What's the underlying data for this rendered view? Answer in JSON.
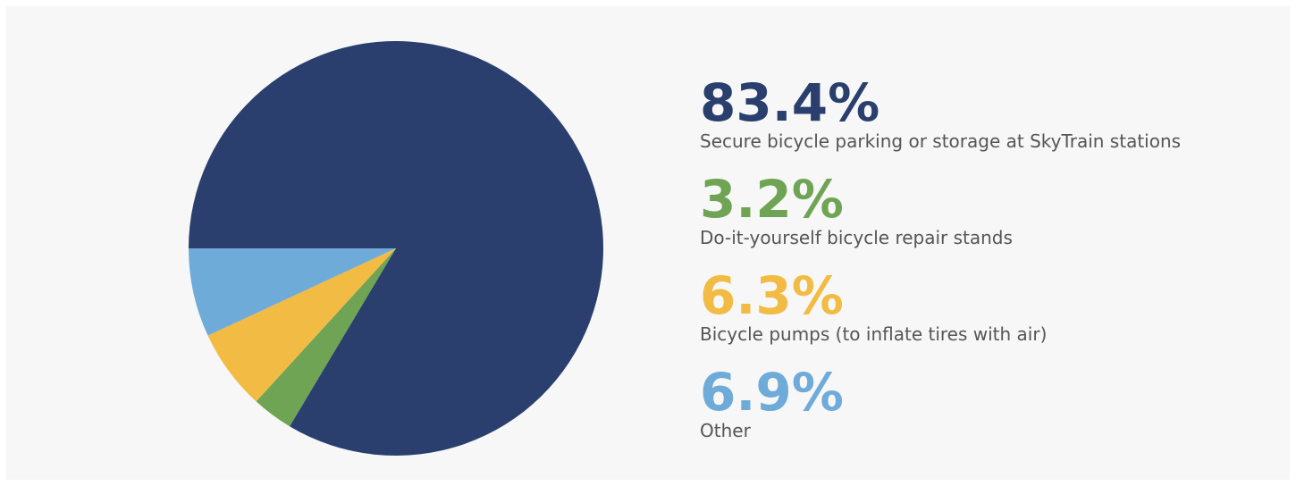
{
  "chart_data": {
    "type": "pie",
    "categories": [
      "Secure bicycle parking or storage at SkyTrain stations",
      "Do-it-yourself bicycle repair stands",
      "Bicycle pumps (to inflate tires with air)",
      "Other"
    ],
    "values": [
      83.4,
      3.2,
      6.3,
      6.9
    ],
    "value_labels": [
      "83.4%",
      "3.2%",
      "6.3%",
      "6.9%"
    ],
    "colors": [
      "#2a3f6e",
      "#70a455",
      "#f2bb44",
      "#6fabd9"
    ]
  }
}
